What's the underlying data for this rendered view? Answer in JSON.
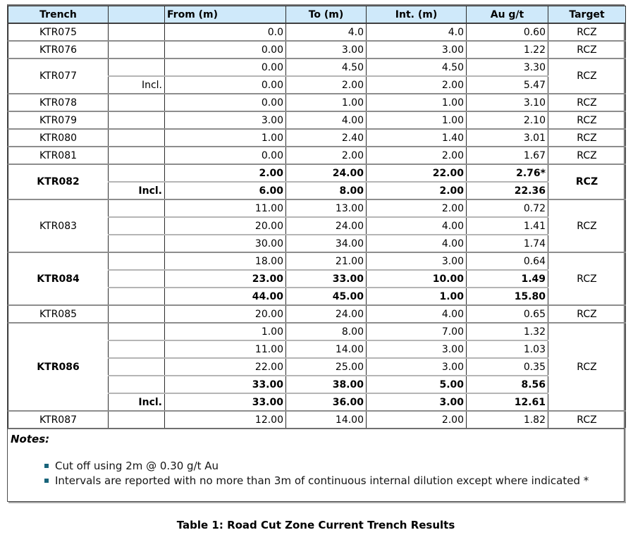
{
  "table": {
    "columns": [
      "Trench",
      "",
      "From (m)",
      "To (m)",
      "Int. (m)",
      "Au g/t",
      "Target"
    ],
    "groups": [
      {
        "trench": "KTR075",
        "trench_bold": false,
        "target": "RCZ",
        "rows": [
          {
            "incl": "",
            "from": "0.0",
            "to": "4.0",
            "int": "4.0",
            "au": "0.60",
            "bold": false
          }
        ]
      },
      {
        "trench": "KTR076",
        "trench_bold": false,
        "target": "RCZ",
        "rows": [
          {
            "incl": "",
            "from": "0.00",
            "to": "3.00",
            "int": "3.00",
            "au": "1.22",
            "bold": false
          }
        ]
      },
      {
        "trench": "KTR077",
        "trench_bold": false,
        "target": "RCZ",
        "rows": [
          {
            "incl": "",
            "from": "0.00",
            "to": "4.50",
            "int": "4.50",
            "au": "3.30",
            "bold": false
          },
          {
            "incl": "Incl.",
            "from": "0.00",
            "to": "2.00",
            "int": "2.00",
            "au": "5.47",
            "bold": false
          }
        ]
      },
      {
        "trench": "KTR078",
        "trench_bold": false,
        "target": "RCZ",
        "rows": [
          {
            "incl": "",
            "from": "0.00",
            "to": "1.00",
            "int": "1.00",
            "au": "3.10",
            "bold": false
          }
        ]
      },
      {
        "trench": "KTR079",
        "trench_bold": false,
        "target": "RCZ",
        "rows": [
          {
            "incl": "",
            "from": "3.00",
            "to": "4.00",
            "int": "1.00",
            "au": "2.10",
            "bold": false
          }
        ]
      },
      {
        "trench": "KTR080",
        "trench_bold": false,
        "target": "RCZ",
        "rows": [
          {
            "incl": "",
            "from": "1.00",
            "to": "2.40",
            "int": "1.40",
            "au": "3.01",
            "bold": false
          }
        ]
      },
      {
        "trench": "KTR081",
        "trench_bold": false,
        "target": "RCZ",
        "rows": [
          {
            "incl": "",
            "from": "0.00",
            "to": "2.00",
            "int": "2.00",
            "au": "1.67",
            "bold": false
          }
        ]
      },
      {
        "trench": "KTR082",
        "trench_bold": true,
        "target": "RCZ",
        "rows": [
          {
            "incl": "",
            "from": "2.00",
            "to": "24.00",
            "int": "22.00",
            "au": "2.76*",
            "bold": true
          },
          {
            "incl": "Incl.",
            "from": "6.00",
            "to": "8.00",
            "int": "2.00",
            "au": "22.36",
            "bold": true
          }
        ]
      },
      {
        "trench": "KTR083",
        "trench_bold": false,
        "target": "RCZ",
        "rows": [
          {
            "incl": "",
            "from": "11.00",
            "to": "13.00",
            "int": "2.00",
            "au": "0.72",
            "bold": false
          },
          {
            "incl": "",
            "from": "20.00",
            "to": "24.00",
            "int": "4.00",
            "au": "1.41",
            "bold": false
          },
          {
            "incl": "",
            "from": "30.00",
            "to": "34.00",
            "int": "4.00",
            "au": "1.74",
            "bold": false
          }
        ]
      },
      {
        "trench": "KTR084",
        "trench_bold": true,
        "target": "RCZ",
        "rows": [
          {
            "incl": "",
            "from": "18.00",
            "to": "21.00",
            "int": "3.00",
            "au": "0.64",
            "bold": false
          },
          {
            "incl": "",
            "from": "23.00",
            "to": "33.00",
            "int": "10.00",
            "au": "1.49",
            "bold": true
          },
          {
            "incl": "",
            "from": "44.00",
            "to": "45.00",
            "int": "1.00",
            "au": "15.80",
            "bold": true
          }
        ]
      },
      {
        "trench": "KTR085",
        "trench_bold": false,
        "target": "RCZ",
        "rows": [
          {
            "incl": "",
            "from": "20.00",
            "to": "24.00",
            "int": "4.00",
            "au": "0.65",
            "bold": false
          }
        ]
      },
      {
        "trench": "KTR086",
        "trench_bold": true,
        "target": "RCZ",
        "rows": [
          {
            "incl": "",
            "from": "1.00",
            "to": "8.00",
            "int": "7.00",
            "au": "1.32",
            "bold": false
          },
          {
            "incl": "",
            "from": "11.00",
            "to": "14.00",
            "int": "3.00",
            "au": "1.03",
            "bold": false
          },
          {
            "incl": "",
            "from": "22.00",
            "to": "25.00",
            "int": "3.00",
            "au": "0.35",
            "bold": false
          },
          {
            "incl": "",
            "from": "33.00",
            "to": "38.00",
            "int": "5.00",
            "au": "8.56",
            "bold": true
          },
          {
            "incl": "Incl.",
            "from": "33.00",
            "to": "36.00",
            "int": "3.00",
            "au": "12.61",
            "bold": true
          }
        ]
      },
      {
        "trench": "KTR087",
        "trench_bold": false,
        "target": "RCZ",
        "rows": [
          {
            "incl": "",
            "from": "12.00",
            "to": "14.00",
            "int": "2.00",
            "au": "1.82",
            "bold": false
          }
        ]
      }
    ]
  },
  "notes": {
    "title": "Notes:",
    "items": [
      "Cut off using 2m @ 0.30 g/t Au",
      "Intervals are reported with no more than 3m of continuous internal dilution except where indicated *"
    ]
  },
  "caption": "Table 1: Road Cut Zone Current Trench Results",
  "colors": {
    "header_bg": "#cfe9fa",
    "bullet_square": "#19647a",
    "group_line": "#8d8d8d",
    "sub_line": "#b5b5b5"
  }
}
